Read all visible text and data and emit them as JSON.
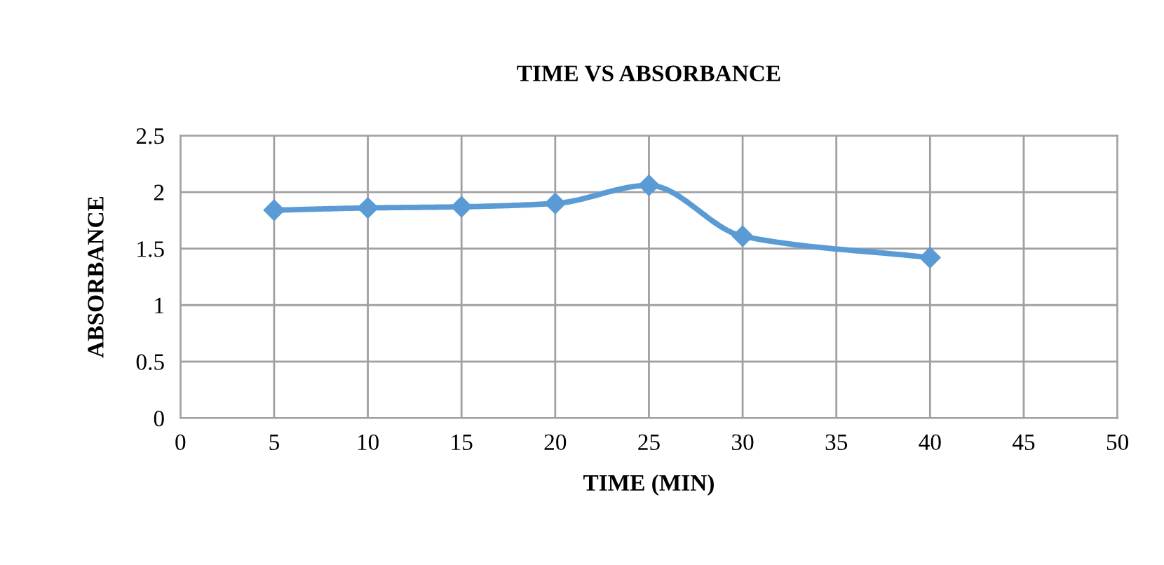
{
  "chart_data": {
    "type": "line",
    "title": "TIME VS ABSORBANCE",
    "xlabel": "TIME (MIN)",
    "ylabel": "ABSORBANCE",
    "x": [
      5,
      10,
      15,
      20,
      25,
      30,
      40
    ],
    "series": [
      {
        "color": "#5b9bd5",
        "values": [
          1.84,
          1.86,
          1.87,
          1.9,
          2.06,
          1.61,
          1.42
        ]
      }
    ],
    "xlim": [
      0,
      50
    ],
    "xticks": [
      0,
      5,
      10,
      15,
      20,
      25,
      30,
      35,
      40,
      45,
      50
    ],
    "ylim": [
      0,
      2.5
    ],
    "yticks": [
      0,
      0.5,
      1,
      1.5,
      2,
      2.5
    ],
    "grid": true,
    "marker": "diamond",
    "line_style": "solid"
  }
}
